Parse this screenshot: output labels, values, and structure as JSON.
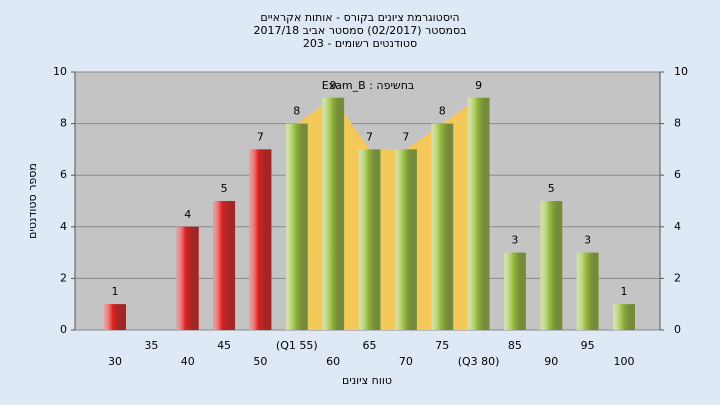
{
  "chart_data": {
    "type": "bar",
    "title": "היסטוגרמת ציונים בקורס - אותות אקראיים",
    "subtitle": "בסמסטר (02/2017) סמסטר אביב 2017/18",
    "subtitle2": "סטודנטים רשומים - 203",
    "annotation": "Exam_B : בחשיפה",
    "xlabel": "טווח ציונים",
    "ylabel": "מספר סטודנטים",
    "categories": [
      "30",
      "35",
      "40",
      "45",
      "50",
      "(Q1 55)",
      "60",
      "65",
      "70",
      "75",
      "(Q3 80)",
      "85",
      "90",
      "95",
      "100"
    ],
    "values": [
      1,
      null,
      4,
      5,
      7,
      8,
      9,
      7,
      7,
      8,
      9,
      3,
      5,
      3,
      1
    ],
    "colors": [
      "#e02020",
      "#e02020",
      "#e02020",
      "#e02020",
      "#e02020",
      "#9cc040",
      "#9cc040",
      "#9cc040",
      "#9cc040",
      "#9cc040",
      "#9cc040",
      "#9cc040",
      "#9cc040",
      "#9cc040",
      "#9cc040"
    ],
    "ylim": [
      0,
      10
    ],
    "yticks": [
      0,
      2,
      4,
      6,
      8,
      10
    ],
    "y2lim": [
      0,
      10
    ],
    "y2ticks": [
      0,
      2,
      4,
      6,
      8,
      10
    ],
    "grid": true
  }
}
